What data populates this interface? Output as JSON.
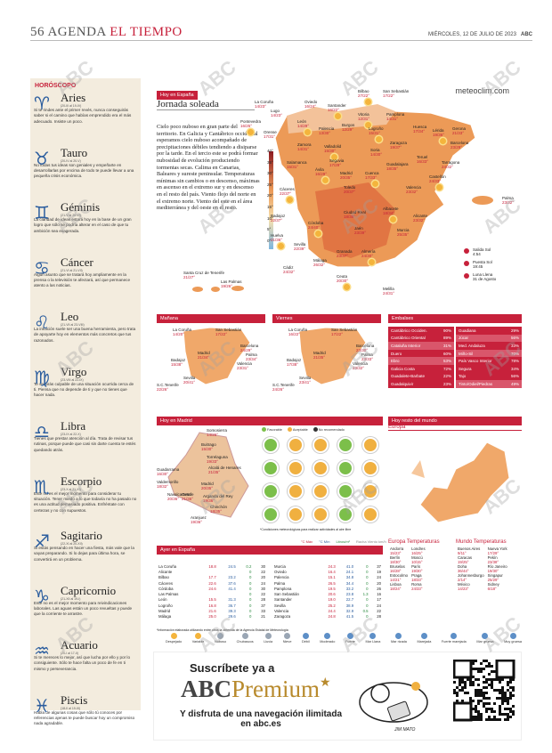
{
  "header": {
    "page": "56",
    "section_a": "AGENDA",
    "section_b": "EL TIEMPO",
    "date": "MIÉRCOLES, 12 DE JULIO DE 2023",
    "brand": "ABC"
  },
  "watermark": "ABC",
  "horoscope": {
    "title": "HORÓSCOPO",
    "signs": [
      {
        "sym": "♈",
        "name": "Aries",
        "dates": "(20-III al 19-IV)",
        "text": "Si te rindes ante el primer revés, nunca conseguirás saber si el camino que habías emprendido era el más adecuado. Insiste un poco."
      },
      {
        "sym": "♉",
        "name": "Tauro",
        "dates": "(20-IV al 20-V)",
        "text": "No todas tus ideas son geniales y empeñarte en desarrollarlas por encima de todo te puede llevar a una pequeña crisis económica."
      },
      {
        "sym": "♊",
        "name": "Géminis",
        "dates": "(21-V al 20-VI)",
        "text": "La claridad de ideas estará hoy en la base de un gran logro que sólo se podría alterar en el caso de que tu ambición sea exagerada."
      },
      {
        "sym": "♋",
        "name": "Cáncer",
        "dates": "(21-VI al 21-VII)",
        "text": "Algún asunto que se tratará hoy ampliamente en la prensa o la televisión te afectará, así que permanece atento a las noticias."
      },
      {
        "sym": "♌",
        "name": "Leo",
        "dates": "(21-VII al 23-VIII)",
        "text": "La intuición suele ser una buena herramienta, pero trata de apoyarte hoy en elementos más concretos que tus razonados."
      },
      {
        "sym": "♍",
        "name": "Virgo",
        "dates": "(23-VIII al 22-IX)",
        "text": "Te sentirás culpable de una situación ocurrida cerca de ti. Piensa que no depende de ti y que no tienes que hacer nada."
      },
      {
        "sym": "♎",
        "name": "Libra",
        "dates": "(23-IX al 22-X)",
        "text": "Tienes que prestar atención al día. Trata de revisar tus rutinas, porque puede que casi sin darte cuenta te estés quedando atrás."
      },
      {
        "sym": "♏",
        "name": "Escorpio",
        "dates": "(23-X al 21-XI)",
        "text": "Este no es el mejor momento para considerar tu situación. Tener miedo a lo que todavía no ha pasado no es una actitud demasiado positiva. Enfréntate con certezas y no con supuestos."
      },
      {
        "sym": "♐",
        "name": "Sagitario",
        "dates": "(22-XI al 20-XII)",
        "text": "Si estás pensando en hacer una fiesta, más vale que la vayas preparando. Si lo dejas para última hora, se convertirá en un problema."
      },
      {
        "sym": "♑",
        "name": "Capricornio",
        "dates": "(21-XII al 19-I)",
        "text": "Este no es el mejor momento para reivindicaciones laborales. Las aguas están un poco revueltas y puede que la corriente te arrastre."
      },
      {
        "sym": "♒",
        "name": "Acuario",
        "dates": "(20-I al 17-II)",
        "text": "Si te mereces lo mejor, así que lucha por ello y por lo consiguiente. Sólo te hace falta un poco de fe en ti mismo y perseverancia."
      },
      {
        "sym": "♓",
        "name": "Piscis",
        "dates": "(18-II al 19-III)",
        "text": "Habla de algunas cosas que sólo tú conoces por referencias ajenas te puede buscar hoy un compromiso nada agradable."
      }
    ]
  },
  "today": {
    "tag": "Hoy en España",
    "title": "Jornada soleada",
    "text": "Cielo poco nuboso en gran parte del territorio. En Galicia y Cantábrico occidental esperamos cielo nuboso acompañado de precipitaciones débiles tendiendo a disiparse por la tarde. En el tercio este se podrá formar nubosidad de evolución produciendo tormentas secas. Calima en Canarias, Baleares y sureste peninsular. Temperaturas mínimas sin cambios o en descenso, máximas en ascenso en el extremo sur y en descenso en el resto del país. Viento flojo del norte en el extremo norte. Viento del este en el área mediterránea y del oeste en el resto.",
    "brand": "meteoclim.com",
    "sun": [
      {
        "label": "Salida Sol",
        "value": "4:54"
      },
      {
        "label": "Puesta Sol",
        "value": "19:45"
      },
      {
        "label": "Luna Llena",
        "value": "31 de Agosto"
      }
    ],
    "scale": [
      "40°",
      "35°",
      "30°",
      "25°",
      "20°",
      "15°",
      "10°",
      "5°",
      "0°"
    ],
    "cities": [
      {
        "n": "Bilbao",
        "t": "27/22°"
      },
      {
        "n": "San Sebastián",
        "t": "17/22°"
      },
      {
        "n": "Oviedo",
        "t": "16/24°"
      },
      {
        "n": "Santander",
        "t": "16/22°"
      },
      {
        "n": "La Coruña",
        "t": "14/23°"
      },
      {
        "n": "Lugo",
        "t": "14/23°"
      },
      {
        "n": "Vitoria",
        "t": "12/31°"
      },
      {
        "n": "Pamplona",
        "t": "14/31°"
      },
      {
        "n": "Huesca",
        "t": "17/34°"
      },
      {
        "n": "Lérida",
        "t": "19/36°"
      },
      {
        "n": "Gerona",
        "t": "21/33°"
      },
      {
        "n": "Barcelona",
        "t": "23/29°"
      },
      {
        "n": "León",
        "t": "14/29°"
      },
      {
        "n": "Burgos",
        "t": "12/29°"
      },
      {
        "n": "Palencia",
        "t": "13/30°"
      },
      {
        "n": "Logroño",
        "t": "15/31°"
      },
      {
        "n": "Zaragoza",
        "t": "19/37°"
      },
      {
        "n": "Soria",
        "t": "14/30°"
      },
      {
        "n": "Pontevedra",
        "t": "16/25°"
      },
      {
        "n": "Orense",
        "t": "17/31°"
      },
      {
        "n": "Zamora",
        "t": "14/31°"
      },
      {
        "n": "Valladolid",
        "t": "15/30°"
      },
      {
        "n": "Tarragona",
        "t": "24/32°"
      },
      {
        "n": "Teruel",
        "t": "16/33°"
      },
      {
        "n": "Castellón",
        "t": "24/33°"
      },
      {
        "n": "Guadalajara",
        "t": "18/35°"
      },
      {
        "n": "Salamanca",
        "t": "15/31°"
      },
      {
        "n": "Ávila",
        "t": "16/29°"
      },
      {
        "n": "Segovia",
        "t": "17/29°"
      },
      {
        "n": "Madrid",
        "t": "20/35°"
      },
      {
        "n": "Cuenca",
        "t": "17/33°"
      },
      {
        "n": "Valencia",
        "t": "23/32°"
      },
      {
        "n": "Palma",
        "t": "23/32°"
      },
      {
        "n": "Cáceres",
        "t": "22/37°"
      },
      {
        "n": "Toledo",
        "t": "20/37°"
      },
      {
        "n": "Ciudad Real",
        "t": "18/38°"
      },
      {
        "n": "Albacete",
        "t": "18/34°"
      },
      {
        "n": "Alicante",
        "t": "23/32°"
      },
      {
        "n": "Badajoz",
        "t": "22/37°"
      },
      {
        "n": "Córdoba",
        "t": "24/40°"
      },
      {
        "n": "Jaén",
        "t": "23/39°"
      },
      {
        "n": "Murcia",
        "t": "25/35°"
      },
      {
        "n": "Huelva",
        "t": "21/36°"
      },
      {
        "n": "Sevilla",
        "t": "22/39°"
      },
      {
        "n": "Granada",
        "t": "23/37°"
      },
      {
        "n": "Almería",
        "t": "24/30°"
      },
      {
        "n": "Cádiz",
        "t": "24/32°"
      },
      {
        "n": "Málaga",
        "t": "26/32°"
      },
      {
        "n": "Ceuta",
        "t": "20/30°"
      },
      {
        "n": "Melilla",
        "t": "24/31°"
      },
      {
        "n": "Santa Cruz de Tenerife",
        "t": "21/27°"
      },
      {
        "n": "Las Palmas",
        "t": "19/26°"
      }
    ]
  },
  "tomorrow": {
    "tag": "Mañana",
    "cities": [
      {
        "n": "La Coruña",
        "t": "14/20°"
      },
      {
        "n": "San Sebastián",
        "t": "17/22°"
      },
      {
        "n": "Barcelona",
        "t": "24/29°"
      },
      {
        "n": "Madrid",
        "t": "21/34°"
      },
      {
        "n": "Valencia",
        "t": "23/31°"
      },
      {
        "n": "Palma",
        "t": "23/34°"
      },
      {
        "n": "Badajoz",
        "t": "15/38°"
      },
      {
        "n": "Sevilla",
        "t": "20/41°"
      },
      {
        "n": "S.C.Tenerife",
        "t": "22/26°"
      }
    ]
  },
  "friday": {
    "tag": "Viernes",
    "cities": [
      {
        "n": "La Coruña",
        "t": "16/22°"
      },
      {
        "n": "San Sebastián",
        "t": "17/22°"
      },
      {
        "n": "Barcelona",
        "t": "23/30°"
      },
      {
        "n": "Madrid",
        "t": "21/35°"
      },
      {
        "n": "Valencia",
        "t": "23/32°"
      },
      {
        "n": "Palma",
        "t": "23/33°"
      },
      {
        "n": "Badajoz",
        "t": "17/38°"
      },
      {
        "n": "Sevilla",
        "t": "23/41°"
      },
      {
        "n": "S.C.Tenerife",
        "t": "24/26°"
      }
    ]
  },
  "reservoirs": {
    "tag": "Embalses",
    "left": [
      {
        "n": "Cantábrico Occiden.",
        "v": "90%",
        "c": "#c7213b"
      },
      {
        "n": "Cantábrico Oriental",
        "v": "89%",
        "c": "#c7213b"
      },
      {
        "n": "Cataluña Interior",
        "v": "31%",
        "c": "#d9566b"
      },
      {
        "n": "Duero",
        "v": "60%",
        "c": "#c7213b"
      },
      {
        "n": "Ebro",
        "v": "53%",
        "c": "#d9566b"
      },
      {
        "n": "Galicia Costa",
        "v": "72%",
        "c": "#c7213b"
      },
      {
        "n": "Guadalete-Barbate",
        "v": "22%",
        "c": "#c7213b"
      },
      {
        "n": "Guadalquivir",
        "v": "23%",
        "c": "#c7213b"
      }
    ],
    "right": [
      {
        "n": "Guadiana",
        "v": "29%",
        "c": "#c7213b"
      },
      {
        "n": "Júcar",
        "v": "56%",
        "c": "#d9566b"
      },
      {
        "n": "Med. Andaluza",
        "v": "33%",
        "c": "#c7213b"
      },
      {
        "n": "Miño-Sil",
        "v": "70%",
        "c": "#d9566b"
      },
      {
        "n": "País Vasco Interior",
        "v": "78%",
        "c": "#c7213b"
      },
      {
        "n": "Segura",
        "v": "34%",
        "c": "#c7213b"
      },
      {
        "n": "Tajo",
        "v": "56%",
        "c": "#c7213b"
      },
      {
        "n": "Tinto/Odiel/Piedras",
        "v": "49%",
        "c": "#d9566b"
      }
    ]
  },
  "madrid": {
    "tag": "Hoy en Madrid",
    "legend": [
      "Favorable",
      "Aceptable",
      "No recomendado"
    ],
    "note": "*Condiciones meteorológicas para realizar actividades al aire libre",
    "cities": [
      {
        "n": "Somosierra",
        "t": "14/26°"
      },
      {
        "n": "Buitrago",
        "t": "15/30°"
      },
      {
        "n": "Torrelaguna",
        "t": "19/33°"
      },
      {
        "n": "Guadarrama",
        "t": "16/30°"
      },
      {
        "n": "Alcalá de Henares",
        "t": "21/35°"
      },
      {
        "n": "Valdemorillo",
        "t": "18/32°"
      },
      {
        "n": "Madrid",
        "t": "20/35°"
      },
      {
        "n": "Navalcarnero",
        "t": "20/36°"
      },
      {
        "n": "Getafe",
        "t": "21/36°"
      },
      {
        "n": "Arganda del Rey",
        "t": "19/36°"
      },
      {
        "n": "Chinchón",
        "t": "18/35°"
      },
      {
        "n": "Aranjuez",
        "t": "19/36°"
      }
    ]
  },
  "world": {
    "tag": "Hoy resto del mundo",
    "region": "Europa"
  },
  "yesterday": {
    "tag": "Ayer en España",
    "cols": [
      "°C Máx",
      "°C Mín",
      "Litros/m²",
      "Racha Viento km/h"
    ],
    "left": [
      [
        "La Coruña",
        "18.8",
        "24.5",
        "0.2",
        "30"
      ],
      [
        "Alicante",
        "",
        "",
        "0",
        "22"
      ],
      [
        "Bilbao",
        "17.7",
        "23.2",
        "0",
        "20"
      ],
      [
        "Cáceres",
        "22.6",
        "37.6",
        "0",
        "24"
      ],
      [
        "Córdoba",
        "24.6",
        "41.4",
        "0",
        "30"
      ],
      [
        "Las Palmas",
        "",
        "",
        "0",
        "22"
      ],
      [
        "León",
        "15.5",
        "31.3",
        "0",
        "28"
      ],
      [
        "Logroño",
        "16.8",
        "36.7",
        "0",
        "37"
      ],
      [
        "Madrid",
        "21.6",
        "39.3",
        "0",
        "33"
      ],
      [
        "Málaga",
        "25.0",
        "29.6",
        "0",
        "21"
      ]
    ],
    "right": [
      [
        "Murcia",
        "24.3",
        "41.0",
        "0",
        "37"
      ],
      [
        "Oviedo",
        "16.4",
        "24.1",
        "0",
        "19"
      ],
      [
        "Palencia",
        "15.1",
        "34.8",
        "0",
        "24"
      ],
      [
        "Palma",
        "26.5",
        "34.4",
        "0",
        "20"
      ],
      [
        "Pamplona",
        "19.5",
        "33.2",
        "0",
        "26"
      ],
      [
        "San Sebastián",
        "20.6",
        "23.8",
        "1.3",
        "16"
      ],
      [
        "Santander",
        "19.0",
        "22.7",
        "0",
        "17"
      ],
      [
        "Sevilla",
        "25.2",
        "38.9",
        "0",
        "24"
      ],
      [
        "Valencia",
        "24.4",
        "32.9",
        "0.5",
        "22"
      ],
      [
        "Zaragoza",
        "24.8",
        "41.5",
        "0",
        "28"
      ]
    ],
    "note": "*Información elaborada utilizando entre otros la obtenida de la Agencia Estatal de Meteorología"
  },
  "europe": {
    "title": "Europa Temperaturas",
    "rows": [
      [
        "Andorra",
        "15/23°",
        "Londres",
        "16/25°"
      ],
      [
        "Berlín",
        "18/30°",
        "Moscú",
        "10/15°"
      ],
      [
        "Bruselas",
        "16/28°",
        "París",
        "19/30°"
      ],
      [
        "Estocolmo",
        "14/21°",
        "Praga",
        "18/33°"
      ],
      [
        "Lisboa",
        "18/24°",
        "Roma",
        "24/33°"
      ]
    ]
  },
  "worldtemps": {
    "title": "Mundo Temperaturas",
    "rows": [
      [
        "Buenos Aires",
        "9/11°",
        "Nueva York",
        "17/29°"
      ],
      [
        "Caracas",
        "19/25°",
        "Pekín",
        "23/38°"
      ],
      [
        "Doha",
        "36/44°",
        "Río Janeiro",
        "19/30°"
      ],
      [
        "Johannesburgo",
        "2/14°",
        "Singapur",
        "25/29°"
      ],
      [
        "México",
        "14/23°",
        "Sidney",
        "6/18°"
      ]
    ]
  },
  "icons": [
    "Despejado",
    "Variable",
    "Nuboso",
    "Chubascos",
    "Lluvia",
    "Nieve",
    "Débil",
    "Moderado",
    "Fuerte",
    "Mar Llana",
    "Mar rizada",
    "Marejada",
    "Fuerte marejada",
    "Mar gruesa",
    "Muy gruesa"
  ],
  "ad": {
    "line1": "Suscríbete ya a",
    "brand_a": "ABC",
    "brand_b": "Premium",
    "line3": "Y disfruta de una navegación ilimitada en abc.es",
    "signature": "JIM MATO"
  }
}
